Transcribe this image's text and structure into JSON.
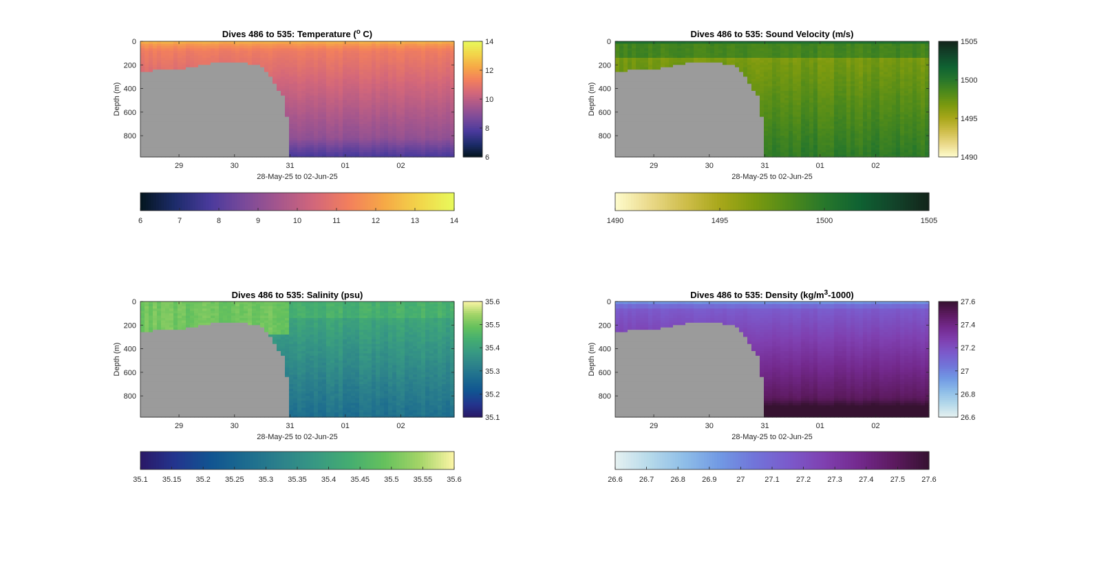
{
  "chart_data": [
    {
      "type": "heatmap",
      "variable": "temperature",
      "title_main": "Dives 486 to 535: Temperature (",
      "title_sup": "o",
      "title_tail": " C)",
      "xlabel": "28-May-25 to 02-Jun-25",
      "ylabel": "Depth (m)",
      "x_ticks": [
        "29",
        "30",
        "31",
        "01",
        "02"
      ],
      "y_ticks": [
        0,
        200,
        400,
        600,
        800
      ],
      "ylim": [
        0,
        980
      ],
      "clim": [
        6,
        14
      ],
      "side_ticks": [
        6,
        8,
        10,
        12,
        14
      ],
      "bottom_ticks": [
        6,
        7,
        8,
        9,
        10,
        11,
        12,
        13,
        14
      ],
      "colormap": [
        "#03151e",
        "#1d2c6b",
        "#4a3a9c",
        "#7a4a9a",
        "#a7578c",
        "#d3677a",
        "#f3805c",
        "#f6a946",
        "#f2d54a",
        "#e8fa5b"
      ],
      "mask_color": "#9b9b9b"
    },
    {
      "type": "heatmap",
      "variable": "sound_velocity",
      "title_main": "Dives 486 to 535: Sound Velocity (m/s)",
      "title_sup": "",
      "title_tail": "",
      "xlabel": "28-May-25 to 02-Jun-25",
      "ylabel": "Depth (m)",
      "x_ticks": [
        "29",
        "30",
        "31",
        "01",
        "02"
      ],
      "y_ticks": [
        0,
        200,
        400,
        600,
        800
      ],
      "ylim": [
        0,
        980
      ],
      "clim": [
        1490,
        1505
      ],
      "side_ticks": [
        1490,
        1495,
        1500,
        1505
      ],
      "bottom_ticks": [
        1490,
        1495,
        1500,
        1505
      ],
      "colormap": [
        "#fefccd",
        "#ead98a",
        "#cfbe4b",
        "#a8a71a",
        "#7c9a0f",
        "#4f8a1a",
        "#27772b",
        "#0f6232",
        "#12442a",
        "#13241a"
      ],
      "mask_color": "#9b9b9b"
    },
    {
      "type": "heatmap",
      "variable": "salinity",
      "title_main": "Dives 486 to 535: Salinity (psu)",
      "title_sup": "",
      "title_tail": "",
      "xlabel": "28-May-25 to 02-Jun-25",
      "ylabel": "Depth (m)",
      "x_ticks": [
        "29",
        "30",
        "31",
        "01",
        "02"
      ],
      "y_ticks": [
        0,
        200,
        400,
        600,
        800
      ],
      "ylim": [
        0,
        980
      ],
      "clim": [
        35.1,
        35.6
      ],
      "side_ticks": [
        35.1,
        35.2,
        35.3,
        35.4,
        35.5,
        35.6
      ],
      "bottom_ticks": [
        35.1,
        35.15,
        35.2,
        35.25,
        35.3,
        35.35,
        35.4,
        35.45,
        35.5,
        35.55,
        35.6
      ],
      "bottom_tick_labels": [
        "35.1",
        "35.15",
        "35.2",
        "35.25",
        "35.3",
        "35.35",
        "35.4",
        "35.45",
        "35.5",
        "35.55",
        "35.6"
      ],
      "colormap": [
        "#2a1866",
        "#23358e",
        "#115491",
        "#1c6b8f",
        "#2c818b",
        "#379883",
        "#44ad71",
        "#65c15d",
        "#a3d467",
        "#fcf5a6"
      ],
      "mask_color": "#9b9b9b"
    },
    {
      "type": "heatmap",
      "variable": "density",
      "title_main": "Dives 486 to 535: Density (kg/m",
      "title_sup": "3",
      "title_tail": "-1000)",
      "xlabel": "28-May-25 to 02-Jun-25",
      "ylabel": "Depth (m)",
      "x_ticks": [
        "29",
        "30",
        "31",
        "01",
        "02"
      ],
      "y_ticks": [
        0,
        200,
        400,
        600,
        800
      ],
      "ylim": [
        0,
        980
      ],
      "clim": [
        26.6,
        27.6
      ],
      "side_ticks": [
        26.6,
        26.8,
        27,
        27.2,
        27.4,
        27.6
      ],
      "side_tick_labels": [
        "26.6",
        "26.8",
        "27",
        "27.2",
        "27.4",
        "27.6"
      ],
      "bottom_ticks": [
        26.6,
        26.7,
        26.8,
        26.9,
        27,
        27.1,
        27.2,
        27.3,
        27.4,
        27.5,
        27.6
      ],
      "bottom_tick_labels": [
        "26.6",
        "26.7",
        "26.8",
        "26.9",
        "27",
        "27.1",
        "27.2",
        "27.3",
        "27.4",
        "27.5",
        "27.6"
      ],
      "colormap": [
        "#e6f1f1",
        "#b5d9ea",
        "#8ebde8",
        "#7199e4",
        "#7174d9",
        "#7b5acb",
        "#7f40b0",
        "#73298d",
        "#5c1a5f",
        "#361231"
      ],
      "mask_color": "#9b9b9b"
    }
  ]
}
